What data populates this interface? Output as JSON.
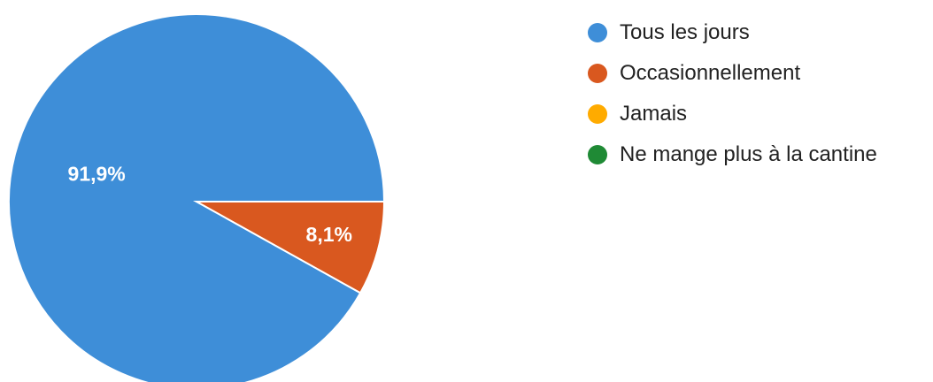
{
  "chart_data": {
    "type": "pie",
    "categories": [
      "Tous les jours",
      "Occasionnellement",
      "Jamais",
      "Ne mange plus à la cantine"
    ],
    "values": [
      91.9,
      8.1,
      0,
      0
    ],
    "data_labels": [
      "91,9%",
      "8,1%",
      "",
      ""
    ],
    "colors": [
      "#3e8ed8",
      "#d9581f",
      "#ffab00",
      "#1f8a35"
    ],
    "legend_position": "right"
  }
}
